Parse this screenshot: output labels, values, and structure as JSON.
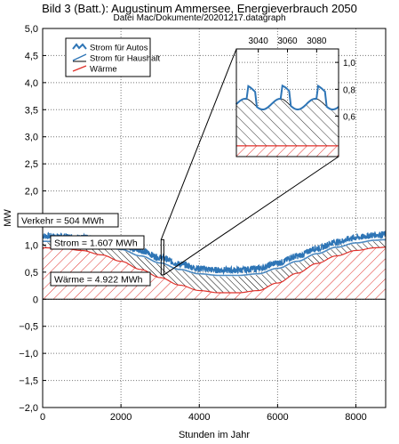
{
  "chart_data": {
    "type": "area",
    "title": "Bild 3 (Batt.): Augustinum Ammersee, Energieverbrauch 2050",
    "subtitle": "Datei Mac/Dokumente/20201217.datagraph",
    "xlabel": "Stunden im Jahr",
    "ylabel": "MW",
    "xlim": [
      0,
      8760
    ],
    "ylim": [
      -2.0,
      5.0
    ],
    "grid": true,
    "legend_position": "top-left",
    "x_ticks": [
      0,
      2000,
      4000,
      6000,
      8000
    ],
    "x_tick_labels": [
      "0",
      "2000",
      "4000",
      "6000",
      "8000"
    ],
    "y_ticks": [
      -2.0,
      -1.5,
      -1.0,
      -0.5,
      0,
      0.5,
      1.0,
      1.5,
      2.0,
      2.5,
      3.0,
      3.5,
      4.0,
      4.5,
      5.0
    ],
    "y_tick_labels": [
      "−2,0",
      "−1,5",
      "−1,0",
      "−0,5",
      "0",
      "0,5",
      "1,0",
      "1,5",
      "2,0",
      "2,5",
      "3,0",
      "3,5",
      "4,0",
      "4,5",
      "5,0"
    ],
    "series": [
      {
        "name": "Strom für Autos",
        "color": "#2e75b6",
        "x": [
          0,
          500,
          1000,
          1500,
          2000,
          2500,
          3000,
          3500,
          4000,
          4500,
          5000,
          5500,
          6000,
          6500,
          7000,
          7500,
          8000,
          8500,
          8760
        ],
        "values": [
          1.15,
          1.14,
          1.12,
          1.08,
          1.0,
          0.88,
          0.75,
          0.63,
          0.55,
          0.52,
          0.52,
          0.55,
          0.65,
          0.78,
          0.92,
          1.04,
          1.12,
          1.17,
          1.18
        ]
      },
      {
        "name": "Strom für Haushalt",
        "color": "#000000",
        "x": [
          0,
          500,
          1000,
          1500,
          2000,
          2500,
          3000,
          3500,
          4000,
          4500,
          5000,
          5500,
          6000,
          6500,
          7000,
          7500,
          8000,
          8500,
          8760
        ],
        "values": [
          1.05,
          1.04,
          1.02,
          0.98,
          0.9,
          0.78,
          0.65,
          0.53,
          0.45,
          0.42,
          0.42,
          0.45,
          0.55,
          0.68,
          0.82,
          0.94,
          1.02,
          1.07,
          1.08
        ]
      },
      {
        "name": "Wärme",
        "color": "#e0302a",
        "x": [
          0,
          500,
          1000,
          1500,
          2000,
          2500,
          3000,
          3500,
          4000,
          4500,
          5000,
          5500,
          6000,
          6500,
          7000,
          7500,
          8000,
          8500,
          8760
        ],
        "values": [
          0.95,
          0.94,
          0.9,
          0.82,
          0.7,
          0.55,
          0.4,
          0.26,
          0.16,
          0.12,
          0.12,
          0.16,
          0.3,
          0.48,
          0.66,
          0.8,
          0.9,
          0.95,
          0.96
        ]
      }
    ],
    "annotations": [
      {
        "text": "Verkehr = 504 MWh",
        "x": 0,
        "y": 1.42
      },
      {
        "text": "Strom = 1.607 MWh",
        "x": 200,
        "y": 0.98
      },
      {
        "text": "Wärme = 4.922 MWh",
        "x": 200,
        "y": 0.34
      }
    ],
    "inset": {
      "xlim": [
        3025,
        3095
      ],
      "ylim": [
        0.3,
        1.1
      ],
      "x_ticks": [
        3040,
        3060,
        3080
      ],
      "x_tick_labels": [
        "3040",
        "3060",
        "3080"
      ],
      "y_ticks": [
        0.6,
        0.8,
        1.0
      ],
      "y_tick_labels": [
        "0,6",
        "0,8",
        "1,0"
      ],
      "source_range": {
        "x": [
          3025,
          3095
        ],
        "y": [
          0.45,
          1.1
        ]
      }
    }
  }
}
